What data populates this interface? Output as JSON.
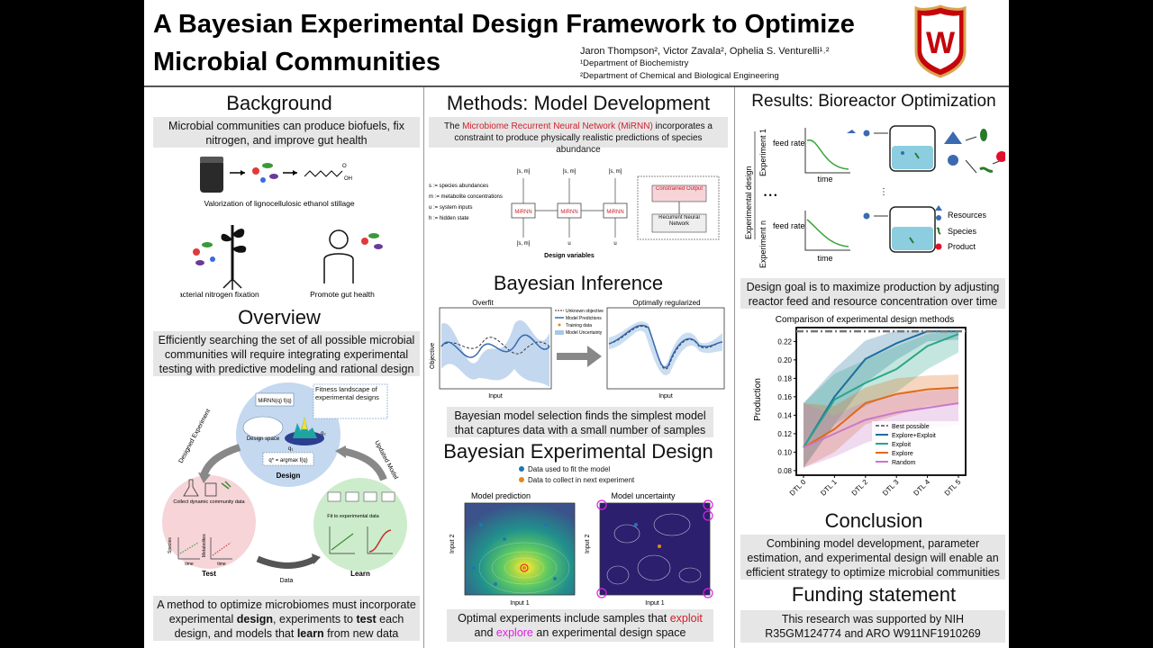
{
  "header": {
    "title_line1": "A Bayesian Experimental Design Framework to Optimize",
    "title_line2": "Microbial Communities",
    "authors": "Jaron Thompson², Victor Zavala², Ophelia S. Venturelli¹˒²",
    "affiliation1": "¹Department of Biochemistry",
    "affiliation2": "²Department of Chemical and Biological Engineering",
    "logo_letter": "W"
  },
  "left": {
    "background_title": "Background",
    "background_text": "Microbial communities can produce biofuels, fix nitrogen, and improve gut health",
    "valorization_caption": "Valorization of lignocellulosic ethanol stillage",
    "nitrogen_caption": "Bacterial nitrogen fixation",
    "gut_caption": "Promote gut health",
    "overview_title": "Overview",
    "overview_text": "Efficiently searching the set of all possible microbial communities will require integrating experimental testing with predictive modeling and rational design",
    "cycle": {
      "fitness_label": "Fitness landscape of experimental designs",
      "design_space": "Design space",
      "design": "Design",
      "test": "Test",
      "learn": "Learn",
      "collect": "Collect dynamic community data",
      "fit": "Fit to experimental data",
      "designed_experiment": "Designed Experiment",
      "updated_model": "Updated Model",
      "data": "Data",
      "species": "Species",
      "metabolites": "Metabolites",
      "time": "time",
      "model_formula": "MiRNN(q)  f(q)",
      "argmax": "q* = argmax f(q)",
      "q1": "q₁",
      "q2": "q₂"
    },
    "bottom_pre": "A method to optimize microbiomes must incorporate experimental ",
    "bottom_design": "design",
    "bottom_mid1": ", experiments to ",
    "bottom_test": "test",
    "bottom_mid2": " each design, and models that ",
    "bottom_learn": "learn",
    "bottom_post": " from new data"
  },
  "middle": {
    "methods_title": "Methods: Model Development",
    "methods_pre": "The ",
    "methods_red": "Microbiome Recurrent Neural Network (MiRNN)",
    "methods_post": " incorporates a constraint to produce physically realistic predictions of species abundance",
    "legend_s": "s := species abundances",
    "legend_m": "m := metabolite concentrations",
    "legend_u": "u := system inputs",
    "legend_h": "h := hidden state",
    "mirnn": "MiRNN",
    "design_variables": "Design variables",
    "constrained_output": "Constrained Output",
    "recurrent_nn": "Recurrent Neural Network",
    "bayes_title": "Bayesian Inference",
    "overfit": "Overfit",
    "optimally_regularized": "Optimally regularized",
    "objective": "Objective",
    "input": "Input",
    "legend_unknown": "Unknown objective",
    "legend_pred": "Model Predictions",
    "legend_train": "Training data",
    "legend_unc": "Model Uncertainty",
    "bayes_text": "Bayesian model selection finds the simplest model that captures data with a small number of samples",
    "bed_title": "Bayesian Experimental Design",
    "bed_legend1": "Data used to fit the model",
    "bed_legend2": "Data to collect in next experiment",
    "model_prediction": "Model prediction",
    "model_uncertainty": "Model uncertainty",
    "input1": "Input 1",
    "input2": "Input 2",
    "bottom_pre": "Optimal experiments include samples that ",
    "bottom_exploit": "exploit",
    "bottom_and": " and ",
    "bottom_explore": "explore",
    "bottom_post": " an experimental design space"
  },
  "right": {
    "results_title": "Results: Bioreactor Optimization",
    "experimental_design": "Experimental design",
    "experiment1": "Experiment 1",
    "experimentn": "Experiment n",
    "feed_rate": "feed rate",
    "time": "time",
    "resources": "Resources",
    "species": "Species",
    "product": "Product",
    "design_goal": "Design goal is to maximize production by adjusting reactor feed and resource concentration over time",
    "conclusion_title": "Conclusion",
    "conclusion_text": "Combining model development, parameter estimation, and experimental design will enable an efficient strategy to optimize microbial communities",
    "funding_title": "Funding statement",
    "funding_text": "This research was supported by NIH R35GM124774 and ARO W911NF1910269"
  },
  "chart_data": {
    "type": "line",
    "title": "Comparison of experimental design methods",
    "xlabel": "",
    "ylabel": "Production",
    "categories": [
      "DTL 0",
      "DTL 1",
      "DTL 2",
      "DTL 3",
      "DTL 4",
      "DTL 5"
    ],
    "ylim": [
      0.075,
      0.235
    ],
    "yticks": [
      "0.08",
      "0.10",
      "0.12",
      "0.14",
      "0.16",
      "0.18",
      "0.20",
      "0.22"
    ],
    "yticks_values": [
      0.08,
      0.1,
      0.12,
      0.14,
      0.16,
      0.18,
      0.2,
      0.22
    ],
    "legend_position": "bottom-right",
    "best_possible": 0.231,
    "series": [
      {
        "name": "Best possible",
        "color": "#777777",
        "dashed": true
      },
      {
        "name": "Explore+Exploit",
        "color": "#1f6f9f",
        "values": [
          0.105,
          0.16,
          0.201,
          0.218,
          0.231,
          0.231
        ],
        "lower": [
          0.083,
          0.13,
          0.175,
          0.2,
          0.22,
          0.222
        ],
        "upper": [
          0.153,
          0.19,
          0.221,
          0.232,
          0.232,
          0.232
        ]
      },
      {
        "name": "Exploit",
        "color": "#2aa58a",
        "values": [
          0.105,
          0.157,
          0.175,
          0.19,
          0.215,
          0.228
        ],
        "lower": [
          0.083,
          0.13,
          0.15,
          0.165,
          0.19,
          0.208
        ],
        "upper": [
          0.153,
          0.185,
          0.2,
          0.215,
          0.228,
          0.232
        ]
      },
      {
        "name": "Explore",
        "color": "#e06a1a",
        "values": [
          0.105,
          0.125,
          0.153,
          0.163,
          0.168,
          0.17
        ],
        "lower": [
          0.083,
          0.1,
          0.13,
          0.14,
          0.15,
          0.152
        ],
        "upper": [
          0.153,
          0.15,
          0.17,
          0.18,
          0.183,
          0.184
        ]
      },
      {
        "name": "Random",
        "color": "#c879c8",
        "values": [
          0.105,
          0.12,
          0.135,
          0.143,
          0.148,
          0.153
        ],
        "lower": [
          0.083,
          0.095,
          0.11,
          0.12,
          0.125,
          0.13
        ],
        "upper": [
          0.153,
          0.14,
          0.155,
          0.163,
          0.166,
          0.17
        ]
      }
    ]
  }
}
